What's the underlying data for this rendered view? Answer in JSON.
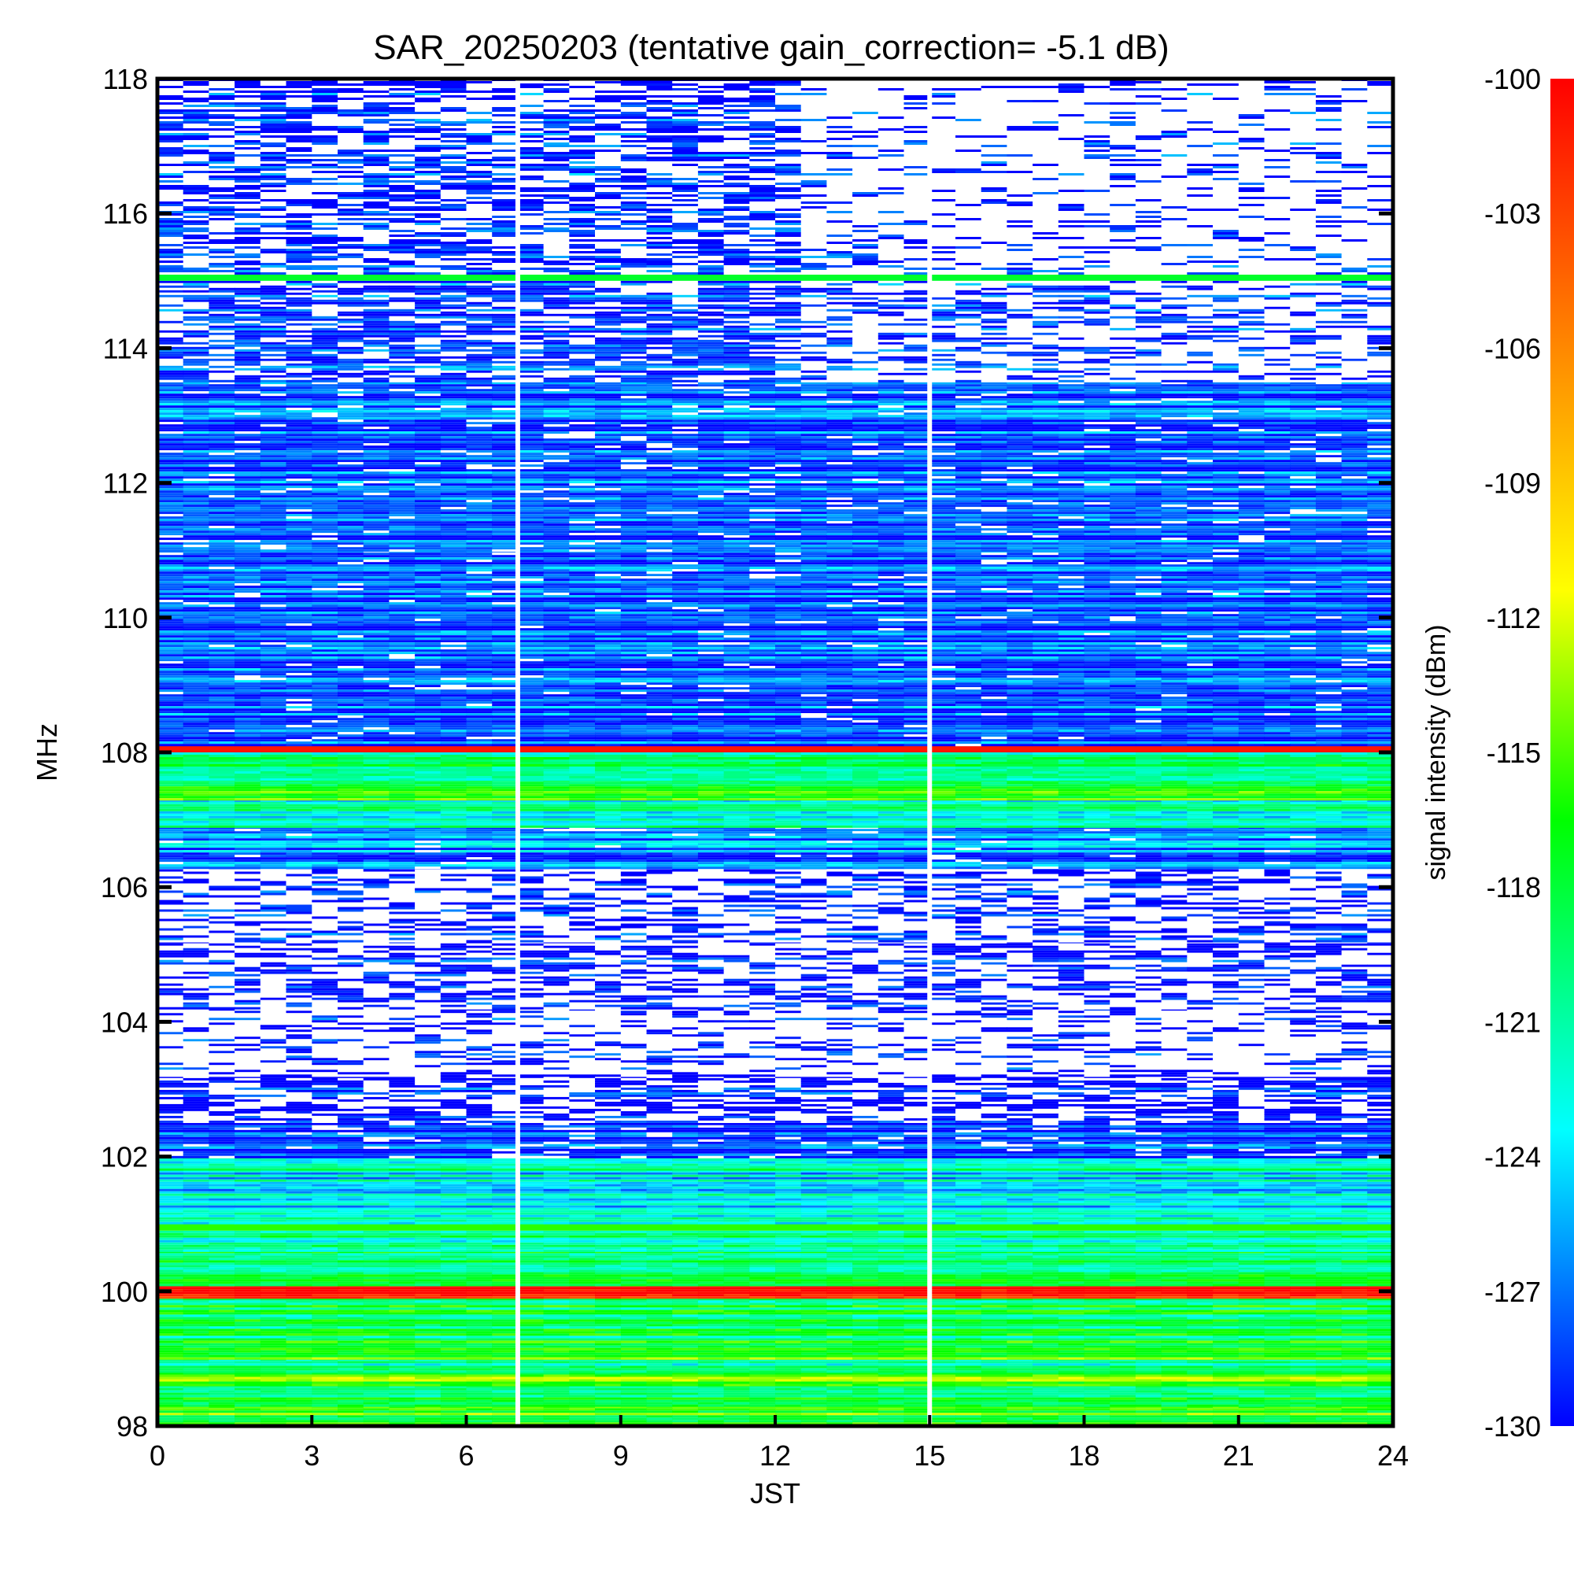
{
  "chart_data": {
    "type": "heatmap",
    "title": "SAR_20250203 (tentative gain_correction= -5.1 dB)",
    "xlabel": "JST",
    "ylabel": "MHz",
    "colorbar_label": "signal intensity (dBm)",
    "xlim": [
      0,
      24
    ],
    "ylim": [
      98,
      118
    ],
    "clim": [
      -130,
      -100
    ],
    "x_ticks": [
      "0",
      "3",
      "6",
      "9",
      "12",
      "15",
      "18",
      "21",
      "24"
    ],
    "y_ticks": [
      "98",
      "100",
      "102",
      "104",
      "106",
      "108",
      "110",
      "112",
      "114",
      "116",
      "118"
    ],
    "colorbar_ticks": [
      "-100",
      "-103",
      "-106",
      "-109",
      "-112",
      "-115",
      "-118",
      "-121",
      "-124",
      "-127",
      "-130"
    ],
    "colormap": [
      "#0000ff",
      "#00ffff",
      "#00ff00",
      "#ffff00",
      "#ff8800",
      "#ff0000"
    ],
    "data_gap_times": [
      7.0,
      15.0
    ],
    "bands": [
      {
        "f0": 98.0,
        "f1": 98.3,
        "level": -117,
        "white_fraction": 0.0
      },
      {
        "f0": 98.3,
        "f1": 98.6,
        "level": -119,
        "white_fraction": 0.0
      },
      {
        "f0": 98.6,
        "f1": 98.8,
        "level": -116,
        "white_fraction": 0.0
      },
      {
        "f0": 98.8,
        "f1": 99.0,
        "level": -121,
        "white_fraction": 0.0
      },
      {
        "f0": 99.0,
        "f1": 99.3,
        "level": -117,
        "white_fraction": 0.0
      },
      {
        "f0": 99.3,
        "f1": 99.9,
        "level": -120,
        "white_fraction": 0.0
      },
      {
        "f0": 99.9,
        "f1": 100.1,
        "level": -101,
        "white_fraction": 0.0
      },
      {
        "f0": 100.1,
        "f1": 100.6,
        "level": -120,
        "white_fraction": 0.0
      },
      {
        "f0": 100.6,
        "f1": 100.9,
        "level": -122,
        "white_fraction": 0.0
      },
      {
        "f0": 100.9,
        "f1": 101.0,
        "level": -117,
        "white_fraction": 0.0
      },
      {
        "f0": 101.0,
        "f1": 101.8,
        "level": -124,
        "white_fraction": 0.0
      },
      {
        "f0": 101.8,
        "f1": 102.0,
        "level": -122,
        "white_fraction": 0.0
      },
      {
        "f0": 102.0,
        "f1": 102.5,
        "level": -129,
        "white_fraction": 0.1
      },
      {
        "f0": 102.5,
        "f1": 103.2,
        "level": -130,
        "white_fraction": 0.45
      },
      {
        "f0": 103.2,
        "f1": 104.2,
        "level": -130,
        "white_fraction": 0.7
      },
      {
        "f0": 104.2,
        "f1": 105.2,
        "level": -130,
        "white_fraction": 0.55
      },
      {
        "f0": 105.2,
        "f1": 106.3,
        "level": -130,
        "white_fraction": 0.6
      },
      {
        "f0": 106.3,
        "f1": 106.9,
        "level": -127,
        "white_fraction": 0.05
      },
      {
        "f0": 106.9,
        "f1": 107.3,
        "level": -123,
        "white_fraction": 0.0
      },
      {
        "f0": 107.3,
        "f1": 107.6,
        "level": -118,
        "white_fraction": 0.0
      },
      {
        "f0": 107.6,
        "f1": 108.0,
        "level": -121,
        "white_fraction": 0.0
      },
      {
        "f0": 108.0,
        "f1": 108.1,
        "level": -101,
        "white_fraction": 0.0
      },
      {
        "f0": 108.1,
        "f1": 111.0,
        "level": -128,
        "white_fraction": 0.05
      },
      {
        "f0": 111.0,
        "f1": 113.5,
        "level": -128,
        "white_fraction": 0.08
      },
      {
        "f0": 113.5,
        "f1": 115.0,
        "level": -129,
        "white_fraction": 0.3
      },
      {
        "f0": 115.0,
        "f1": 115.1,
        "level": -119,
        "white_fraction": 0.0
      },
      {
        "f0": 115.1,
        "f1": 118.0,
        "level": -129,
        "white_fraction": 0.45
      }
    ]
  }
}
